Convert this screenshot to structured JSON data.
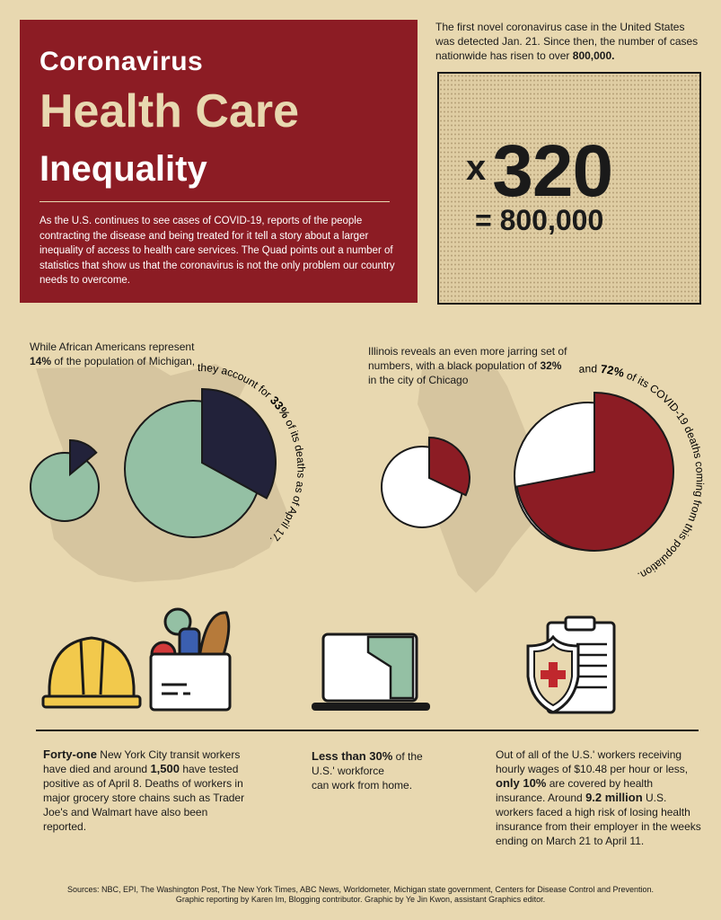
{
  "header": {
    "title_line1": "Coronavirus",
    "title_line2": "Health Care",
    "title_line3": "Inequality",
    "intro": "As the U.S. continues to see cases of COVID-19, reports of the people contracting the disease and being treated for it tell a story about a larger inequality of access to health care services. The Quad points out a number of statistics that show us that the coronavirus is not the only problem our country needs to overcome."
  },
  "cases": {
    "intro_prefix": "The first novel coronavirus case in the United States was detected Jan. 21.",
    "intro_mid": " Since then, the number of cases nationwide has risen to over ",
    "intro_bold": "800,000.",
    "multiplier_x": "x",
    "multiplier_value": "320",
    "equals": "= 800,000"
  },
  "michigan": {
    "text_pre": "While African Americans represent ",
    "text_bold": "14%",
    "text_post": " of the population of Michigan,",
    "curved_pre": "they account for ",
    "curved_bold": "33%",
    "curved_post": " of its deaths as of April 17.",
    "small_pie_fraction": 0.14,
    "large_pie_fraction": 0.33
  },
  "illinois": {
    "text_pre": "Illinois reveals an even more jarring set of numbers, with a black population of ",
    "text_bold": "32%",
    "text_post": " in the city of Chicago",
    "curved_pre": "and ",
    "curved_bold": "72%",
    "curved_post": " of its COVID-19 deaths coming from this population.",
    "small_pie_fraction": 0.32,
    "large_pie_fraction": 0.72
  },
  "stats": {
    "transit_bold1": "Forty-one",
    "transit_text1": " New York City transit workers have died and around ",
    "transit_bold2": "1,500",
    "transit_text2": " have tested positive as of April 8. Deaths of workers in major grocery store chains such as Trader Joe's and Walmart have also been reported.",
    "remote_bold": "Less than 30%",
    "remote_text1": " of the",
    "remote_text2": "U.S.' workforce",
    "remote_text3": "can work from home.",
    "wages_text1": "Out of all of the U.S.' workers receiving hourly wages of $10.48 per hour or less, ",
    "wages_bold1": "only 10%",
    "wages_text2": " are covered by health insurance. Around ",
    "wages_bold2": "9.2 million",
    "wages_text3": " U.S. workers faced a high risk of losing health insurance from their employer in the weeks ending on March 21 to April 11."
  },
  "footer": {
    "sources": "Sources: NBC, EPI, The Washington Post, The New York Times, ABC News, Worldometer, Michigan state government, Centers for Disease Control and Prevention.",
    "credits": "Graphic reporting by Karen Im, Blogging contributor. Graphic by Ye Jin Kwon, assistant Graphics editor."
  },
  "colors": {
    "crimson": "#8c1c24",
    "cream": "#e8d8b0",
    "navy": "#22223a",
    "sage": "#94c0a4",
    "map": "#d6c59f"
  },
  "icons": [
    "hard-hat-icon",
    "grocery-bag-icon",
    "laptop-icon",
    "clipboard-health-shield-icon"
  ]
}
